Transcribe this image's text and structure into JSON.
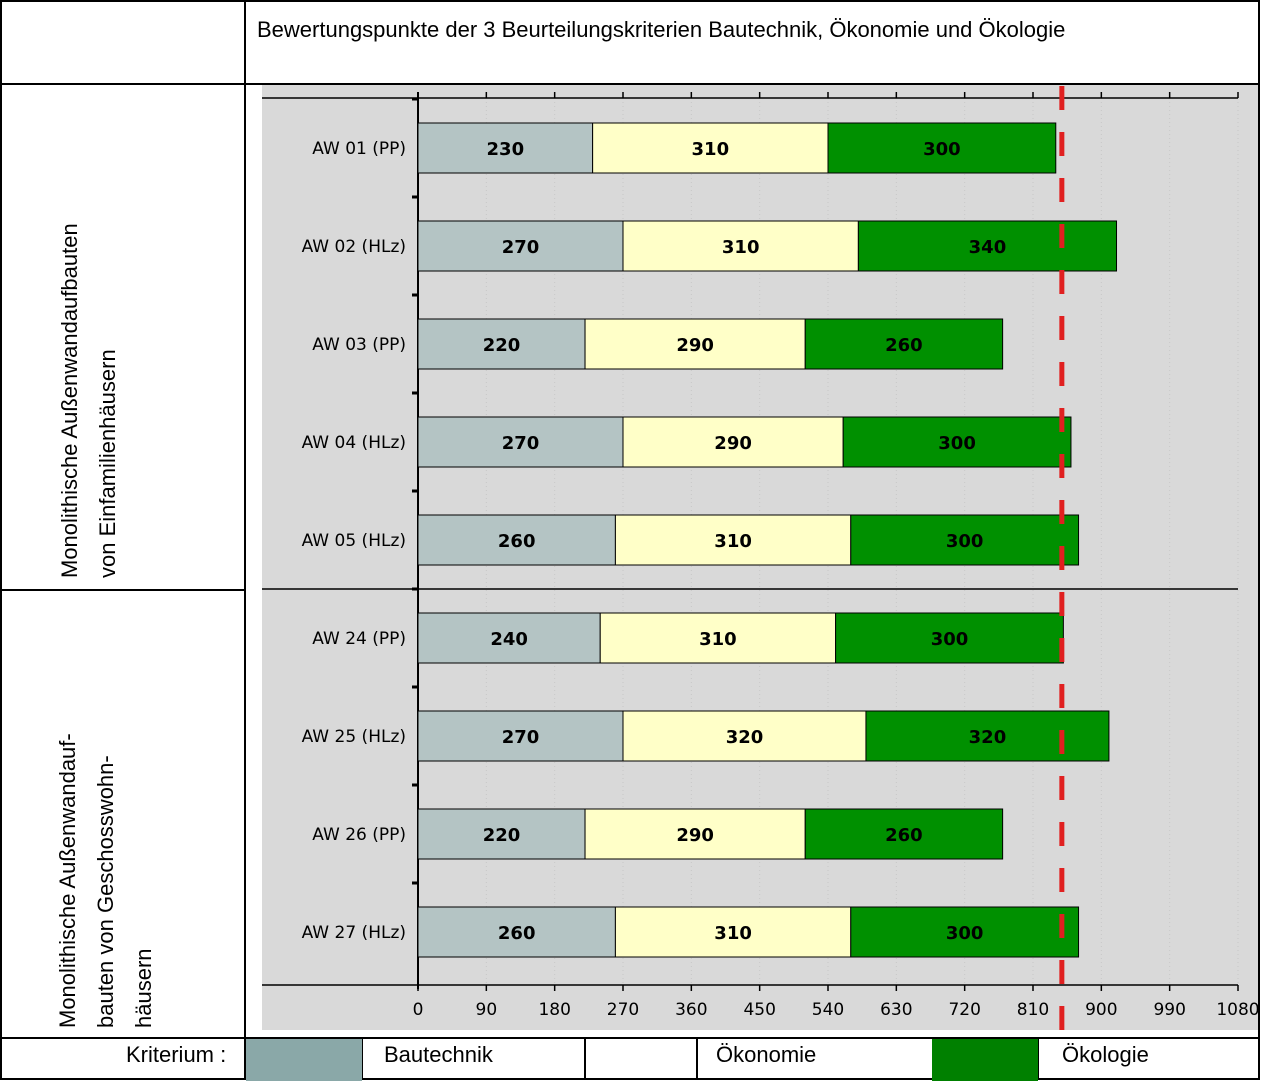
{
  "header": {
    "title": "Bewertungspunkte der 3 Beurteilungskriterien Bautechnik, Ökonomie und Ökologie"
  },
  "groups": [
    {
      "label_lines": [
        "Monolithische Außenwandaufbauten",
        "von Einfamilienhäusern"
      ]
    },
    {
      "label_lines": [
        "Monolithische Außenwandauf-",
        "bauten von Geschosswohn-",
        "häusern"
      ]
    }
  ],
  "legend": {
    "prefix": "Kriterium :",
    "items": [
      {
        "label": "Bautechnik",
        "color": "#8aa8a8"
      },
      {
        "label": "Ökonomie",
        "color": "#ffffff"
      },
      {
        "label": "Ökologie",
        "color": "#008000"
      }
    ]
  },
  "chart_data": {
    "type": "bar",
    "orientation": "horizontal",
    "stacked": true,
    "categories": [
      "AW 01 (PP)",
      "AW 02 (HLz)",
      "AW 03 (PP)",
      "AW 04 (HLz)",
      "AW 05 (HLz)",
      "AW 24 (PP)",
      "AW 25 (HLz)",
      "AW 26 (PP)",
      "AW 27 (HLz)"
    ],
    "series": [
      {
        "name": "Bautechnik",
        "color": "#b4c4c4",
        "values": [
          230,
          270,
          220,
          270,
          260,
          240,
          270,
          220,
          260
        ]
      },
      {
        "name": "Ökonomie",
        "color": "#ffffc8",
        "values": [
          310,
          310,
          290,
          290,
          310,
          310,
          320,
          290,
          310
        ]
      },
      {
        "name": "Ökologie",
        "color": "#009000",
        "values": [
          300,
          340,
          260,
          300,
          300,
          300,
          320,
          260,
          300
        ]
      }
    ],
    "xlim": [
      0,
      1080
    ],
    "xticks": [
      "0",
      "90",
      "180",
      "270",
      "360",
      "450",
      "540",
      "630",
      "720",
      "810",
      "900",
      "990",
      "1080"
    ],
    "reference_line": {
      "x": 848,
      "color": "#e02020",
      "style": "dashed"
    },
    "group_divider_after_index": 4,
    "grid": true
  }
}
